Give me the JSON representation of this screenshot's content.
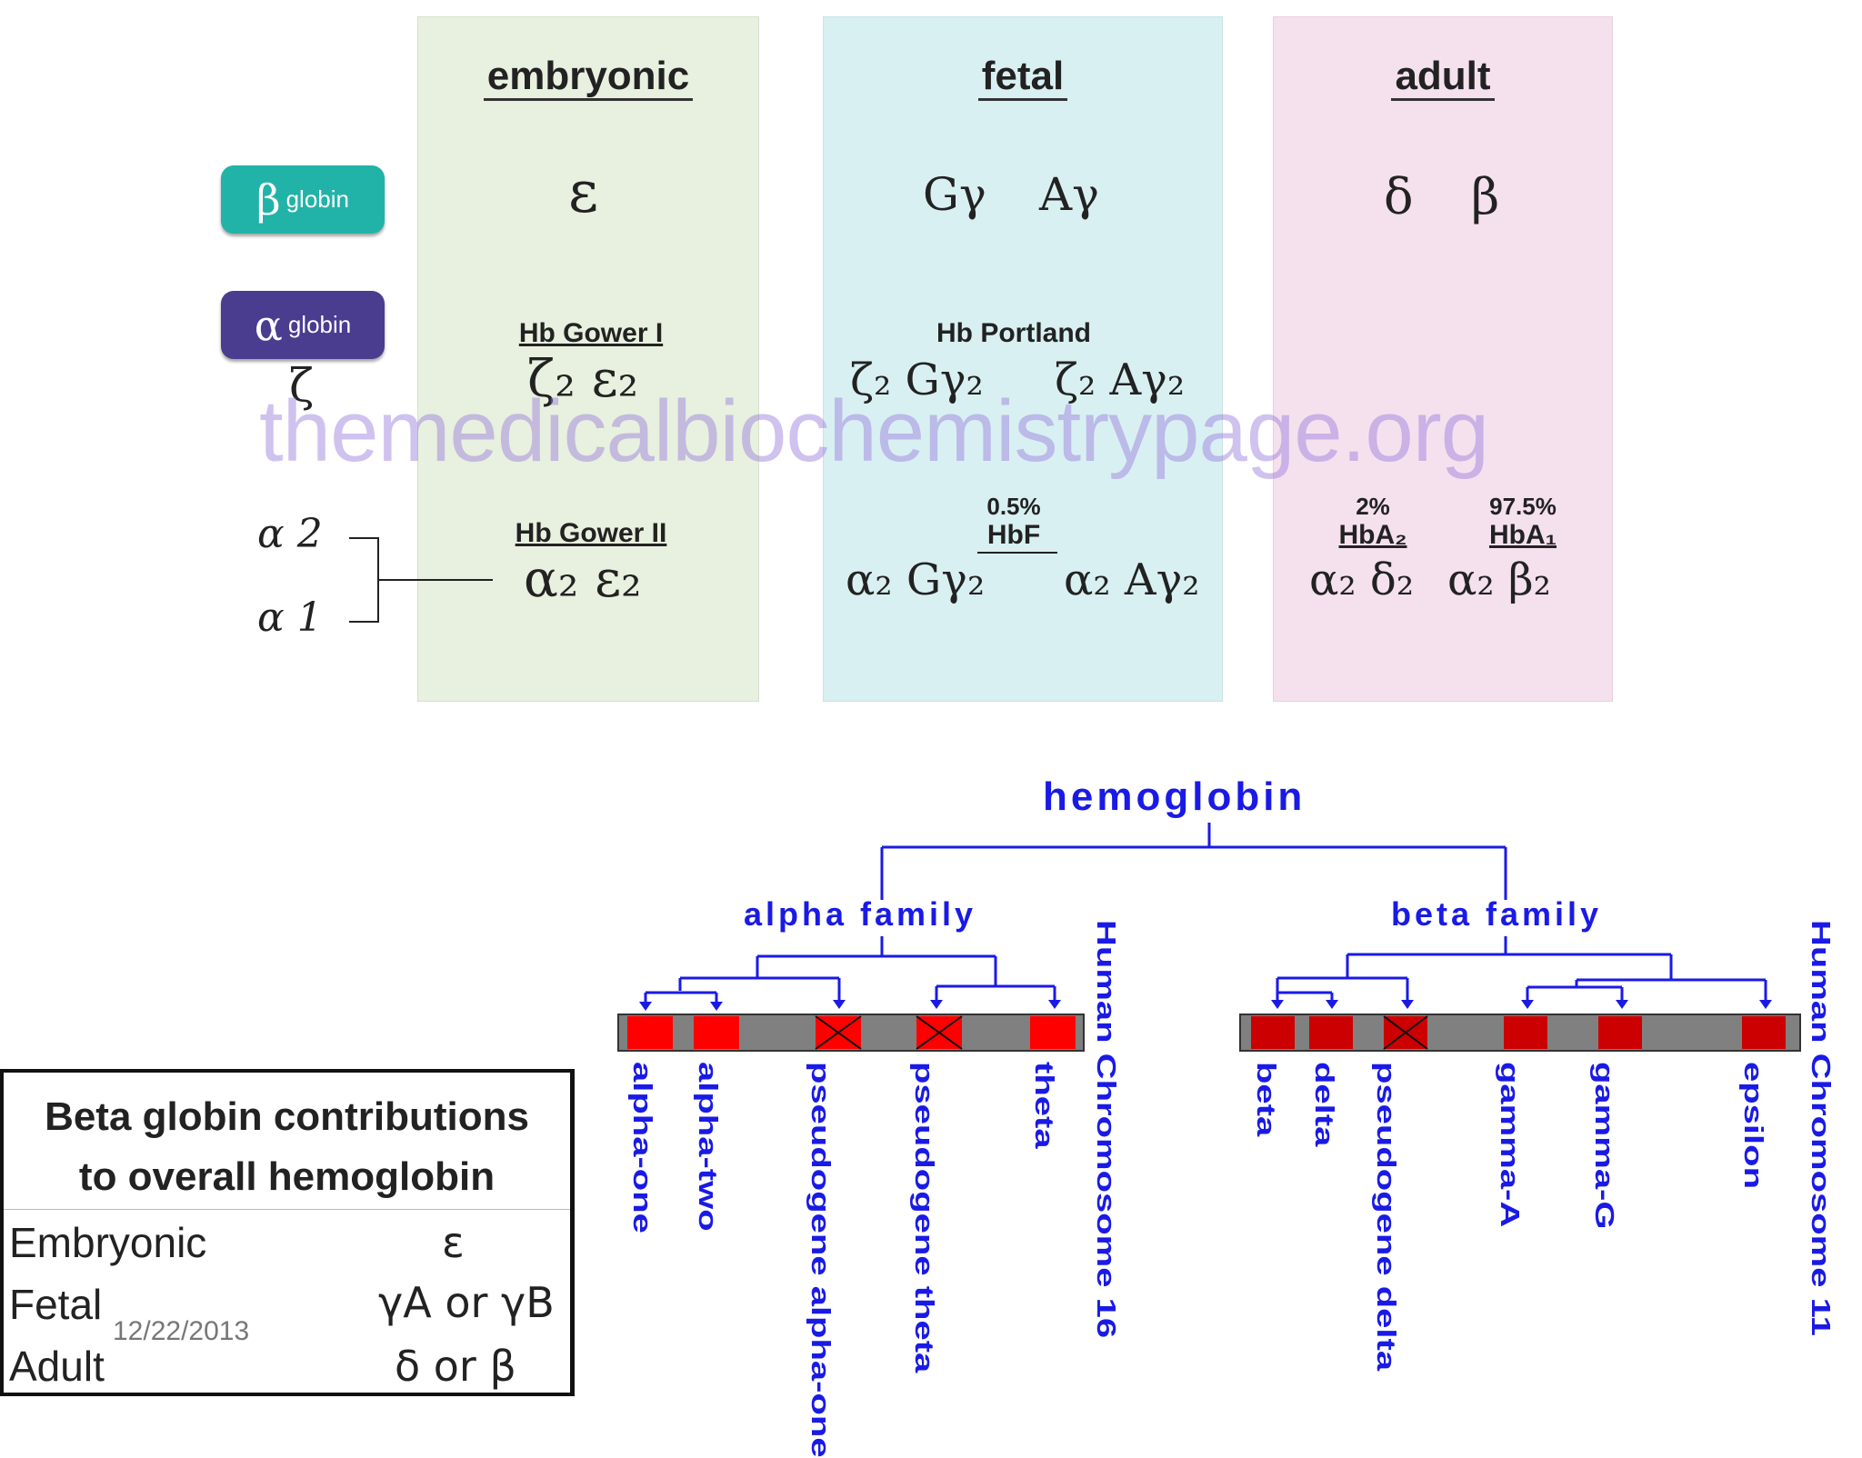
{
  "panels": {
    "embryonic": {
      "title": "embryonic",
      "beta_gene": "ε",
      "hb1_name": "Hb Gower I",
      "hb1_formula": "ζ₂ ε₂",
      "hb2_name": "Hb Gower II",
      "hb2_formula": "α₂ ε₂"
    },
    "fetal": {
      "title": "fetal",
      "beta_gene_1": "Gγ",
      "beta_gene_2": "Aγ",
      "hb1_name": "Hb Portland",
      "hb1_formula_1": "ζ₂ Gγ₂",
      "hb1_formula_2": "ζ₂ Aγ₂",
      "hbf_pct": "0.5%",
      "hbf_name": "HbF",
      "hb2_formula_1": "α₂ Gγ₂",
      "hb2_formula_2": "α₂ Aγ₂"
    },
    "adult": {
      "title": "adult",
      "beta_gene_1": "δ",
      "beta_gene_2": "β",
      "hba2_pct": "2%",
      "hba2_name": "HbA₂",
      "hba1_pct": "97.5%",
      "hba1_name": "HbA₁",
      "hba2_formula": "α₂ δ₂",
      "hba1_formula": "α₂ β₂"
    }
  },
  "legend": {
    "beta_pill_glyph": "β",
    "beta_pill_text": "globin",
    "beta_color": "#22b3a8",
    "alpha_pill_glyph": "α",
    "alpha_pill_text": "globin",
    "alpha_color": "#4a3c8f",
    "zeta": "ζ",
    "alpha2": "α 2",
    "alpha1": "α 1"
  },
  "watermark": "themedicalbiochemistrypage.org",
  "tree": {
    "root": "hemoglobin",
    "alpha_family": "alpha family",
    "beta_family": "beta family",
    "chrom16": "Human Chromosome 16",
    "chrom11": "Human Chromosome 11",
    "alpha_genes": [
      "alpha-one",
      "alpha-two",
      "pseudogene alpha-one",
      "pseudogene theta",
      "theta"
    ],
    "beta_genes": [
      "beta",
      "delta",
      "pseudogene delta",
      "gamma-A",
      "gamma-G",
      "epsilon"
    ]
  },
  "table": {
    "caption_1": "Beta globin contributions",
    "caption_2": "to overall hemoglobin",
    "rows": [
      {
        "label": "Embryonic",
        "value": "ε"
      },
      {
        "label": "Fetal",
        "value": "γA or γB"
      },
      {
        "label": "Adult",
        "value": "δ or β"
      }
    ]
  },
  "date": "12/22/2013"
}
